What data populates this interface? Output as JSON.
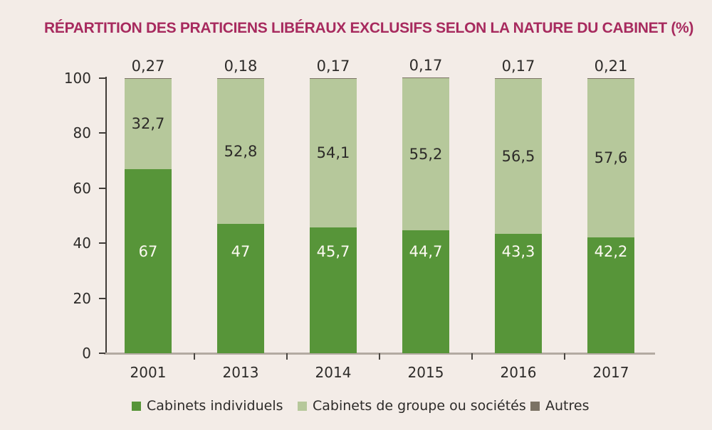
{
  "title": "RÉPARTITION DES PRATICIENS LIBÉRAUX EXCLUSIFS SELON LA NATURE DU CABINET (%)",
  "colors": {
    "background": "#f3ece7",
    "title": "#a72a5e",
    "dark_green": "#579539",
    "light_green": "#b6c89b",
    "gray_autres": "#7b7264",
    "axis_dark": "#403c38",
    "axis_light": "#b3aaa2",
    "text_dark": "#2d2b29",
    "text_white": "#fdfaf2"
  },
  "chart_data": {
    "type": "bar",
    "stacked": true,
    "title": "RÉPARTITION DES PRATICIENS LIBÉRAUX EXCLUSIFS SELON LA NATURE DU CABINET (%)",
    "categories": [
      "2001",
      "2013",
      "2014",
      "2015",
      "2016",
      "2017"
    ],
    "series": [
      {
        "name": "Cabinets individuels",
        "color": "#579539",
        "values": [
          67,
          47,
          45.7,
          44.7,
          43.3,
          42.2
        ],
        "labels": [
          "67",
          "47",
          "45,7",
          "44,7",
          "43,3",
          "42,2"
        ]
      },
      {
        "name": "Cabinets de groupe ou sociétés",
        "color": "#b6c89b",
        "values": [
          32.7,
          52.8,
          54.1,
          55.2,
          56.5,
          57.6
        ],
        "labels": [
          "32,7",
          "52,8",
          "54,1",
          "55,2",
          "56,5",
          "57,6"
        ]
      },
      {
        "name": "Autres",
        "color": "#7b7264",
        "values": [
          0.27,
          0.18,
          0.17,
          0.17,
          0.17,
          0.21
        ],
        "labels": [
          "0,27",
          "0,18",
          "0,17",
          "0,17",
          "0,17",
          "0,21"
        ]
      }
    ],
    "xlabel": "",
    "ylabel": "",
    "ylim": [
      0,
      100
    ],
    "yticks": [
      "0",
      "20",
      "40",
      "60",
      "80",
      "100"
    ],
    "grid": false,
    "legend_position": "bottom"
  }
}
